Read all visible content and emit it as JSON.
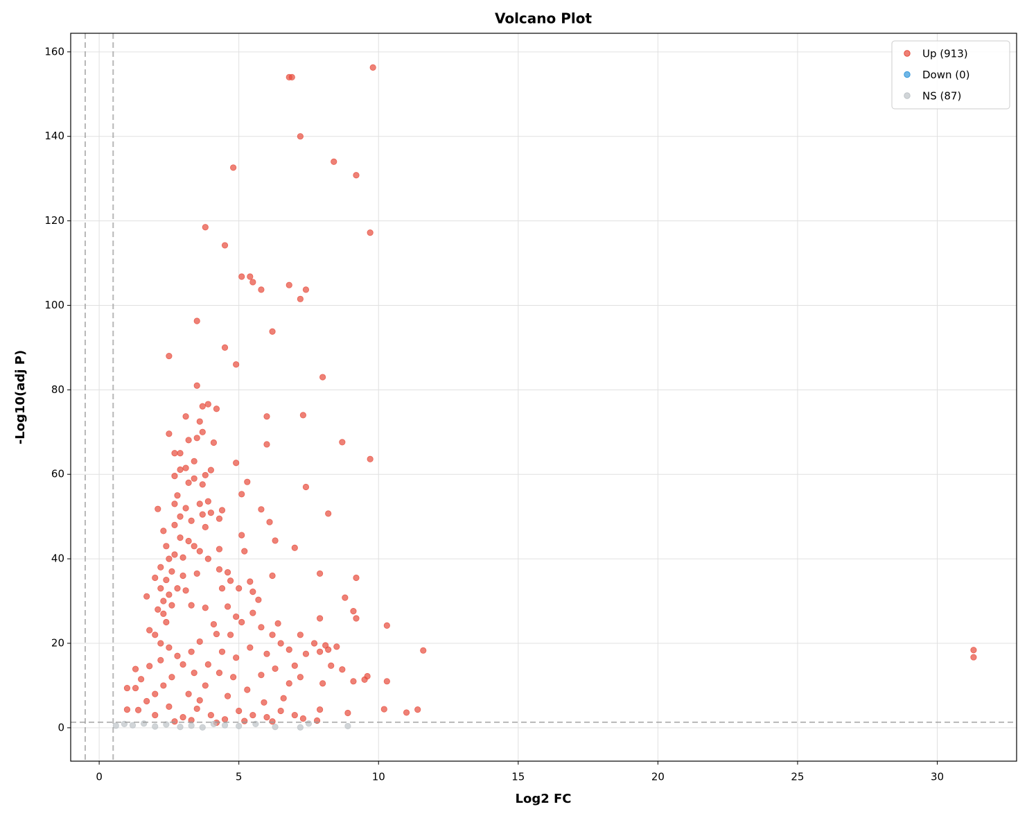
{
  "chart_data": {
    "type": "scatter",
    "title": "Volcano Plot",
    "xlabel": "Log2 FC",
    "ylabel": "-Log10(adj P)",
    "xlim": [
      -1.02,
      32.84
    ],
    "ylim": [
      -7.9,
      164.4
    ],
    "xticks": [
      0,
      5,
      10,
      15,
      20,
      25,
      30
    ],
    "yticks": [
      0,
      20,
      40,
      60,
      80,
      100,
      120,
      140,
      160
    ],
    "grid": true,
    "legend": "upper right",
    "thresholds": {
      "x": [
        -0.5,
        0.5
      ],
      "y": 1.3
    },
    "series": [
      {
        "name": "Up (913)",
        "color": "#e74c3c",
        "x": [
          6.8,
          6.9,
          9.8,
          7.2,
          8.4,
          9.2,
          4.8,
          3.8,
          9.7,
          4.5,
          5.1,
          5.4,
          5.5,
          5.8,
          6.8,
          7.4,
          7.2,
          3.5,
          6.2,
          4.5,
          2.5,
          4.9,
          8,
          3.5,
          3.9,
          3.7,
          4.2,
          3.1,
          6,
          7.3,
          3.6,
          2.5,
          3.7,
          3.5,
          3.2,
          4.1,
          6,
          8.7,
          2.7,
          2.9,
          9.7,
          4.9,
          3.4,
          2.9,
          3.1,
          4,
          3.8,
          2.7,
          5.3,
          7.4,
          3.7,
          5.1,
          2.1,
          5.8,
          8.2,
          6.1,
          2.3,
          6.3,
          7,
          4.3,
          5.2,
          7.9,
          6.2,
          9.2,
          5.4,
          1.7,
          8.8,
          9.1,
          9.2,
          7.9,
          10.3,
          5.8,
          7.2,
          11.6,
          8.5,
          7.9,
          31.3,
          31.3,
          10.3,
          9.6,
          9.5,
          9.1,
          8,
          10.2,
          11,
          11.4,
          8.9,
          7.9,
          7.8,
          1,
          1.3,
          1.3,
          1,
          1.8,
          2.2,
          2.4,
          2.5,
          2.6,
          2.3,
          2.1,
          2.0,
          2.2,
          2.4,
          2.6,
          2.8,
          3.0,
          2.7,
          2.9,
          2.7,
          2.9,
          3.1,
          2.8,
          2.7,
          3.2,
          3.4,
          3.6,
          3.9,
          3.3,
          3.7,
          4.3,
          4.4,
          3.8,
          3.4,
          3.9,
          4.3,
          4.4,
          4.7,
          5.0,
          3.5,
          3.1,
          3.3,
          3.8,
          4.1,
          4.6,
          4.9,
          5.5,
          5.1,
          4.7,
          4.2,
          3.6,
          3.3,
          3.0,
          2.6,
          2.3,
          2.0,
          1.8,
          1.5,
          1.7,
          1.4,
          2.0,
          2.5,
          3.0,
          3.5,
          4.0,
          4.5,
          5.0,
          5.5,
          6.0,
          6.5,
          7.0,
          3.2,
          3.8,
          4.3,
          4.8,
          5.3,
          5.8,
          6.3,
          6.8,
          7.2,
          6.0,
          6.5,
          5.4,
          4.9,
          4.4,
          3.9,
          3.4,
          2.8,
          2.5,
          2.2,
          6.2,
          6.8,
          7.4,
          5.7,
          5.5,
          4.6,
          2.4,
          2.2,
          2.0,
          3.0,
          3.2,
          4.0,
          3.6,
          2.5,
          2.3,
          5.1,
          6.4,
          7.0,
          6.6,
          5.9,
          4.6,
          3.6,
          2.7,
          3.3,
          4.2,
          5.2,
          6.2,
          7.3,
          7.7,
          8.1,
          8.3,
          8.7,
          8.2
        ],
        "values": [
          154,
          154,
          156.3,
          140,
          134,
          130.8,
          132.6,
          118.5,
          117.2,
          114.2,
          106.8,
          106.8,
          105.5,
          103.7,
          104.8,
          103.7,
          101.5,
          96.3,
          93.8,
          90,
          88,
          86,
          83,
          81,
          76.6,
          76.1,
          75.5,
          73.7,
          73.7,
          74,
          72.5,
          69.6,
          70,
          68.6,
          68.1,
          67.5,
          67.1,
          67.6,
          65,
          65,
          63.6,
          62.7,
          63.1,
          61.1,
          61.5,
          61,
          59.8,
          59.6,
          58.2,
          57,
          57.6,
          55.3,
          51.8,
          51.7,
          50.7,
          48.7,
          46.6,
          44.3,
          42.6,
          42.3,
          41.8,
          36.5,
          36,
          35.5,
          34.6,
          31.1,
          30.8,
          27.6,
          25.9,
          25.9,
          24.2,
          23.8,
          22,
          18.3,
          19.2,
          18,
          18.4,
          16.7,
          11,
          12.2,
          11.4,
          11,
          10.5,
          4.4,
          3.6,
          4.3,
          3.5,
          4.3,
          1.7,
          9.4,
          9.4,
          13.9,
          4.3,
          23.1,
          38,
          35,
          40,
          37,
          30,
          28,
          22,
          20,
          25,
          29,
          33,
          36,
          41,
          45,
          48,
          50,
          52,
          55,
          53,
          58,
          59,
          53,
          53.6,
          49,
          50.5,
          49.5,
          51.5,
          47.5,
          43,
          40,
          37.5,
          33,
          34.8,
          33,
          36.5,
          32.5,
          29,
          28.4,
          24.5,
          28.7,
          26.3,
          27.2,
          25,
          22,
          22.2,
          20.4,
          18,
          15,
          12,
          10,
          8,
          14.6,
          11.5,
          6.3,
          4.2,
          3,
          5,
          2.5,
          4.5,
          3,
          2,
          4,
          3,
          2.5,
          4,
          3,
          8,
          10,
          13,
          12,
          9,
          12.5,
          14,
          10.5,
          12,
          17.5,
          20,
          19,
          16.6,
          18,
          15,
          13,
          17,
          19,
          16,
          22,
          18.5,
          17.5,
          30.3,
          32.2,
          36.8,
          43,
          33,
          35.5,
          40.3,
          44.2,
          50.9,
          41.8,
          31.5,
          27,
          45.6,
          24.7,
          14.7,
          7,
          6,
          7.5,
          6.5,
          1.5,
          1.8,
          1.2,
          1.6,
          1.5,
          2.2,
          20,
          19.5,
          14.7,
          13.8,
          18.5
        ]
      },
      {
        "name": "Down (0)",
        "color": "#3498db",
        "x": [],
        "values": []
      },
      {
        "name": "NS (87)",
        "color": "#bdc3c7",
        "x": [
          0.6,
          0.9,
          1.2,
          1.6,
          2.0,
          2.4,
          2.9,
          3.3,
          3.7,
          4.1,
          4.5,
          5.0,
          5.6,
          6.3,
          7.2,
          8.9,
          7.5
        ],
        "values": [
          0.5,
          0.9,
          0.6,
          1.0,
          0.3,
          0.8,
          0.2,
          0.5,
          0.1,
          0.9,
          0.6,
          0.4,
          0.9,
          0.2,
          0.1,
          0.4,
          1.0
        ]
      }
    ]
  }
}
